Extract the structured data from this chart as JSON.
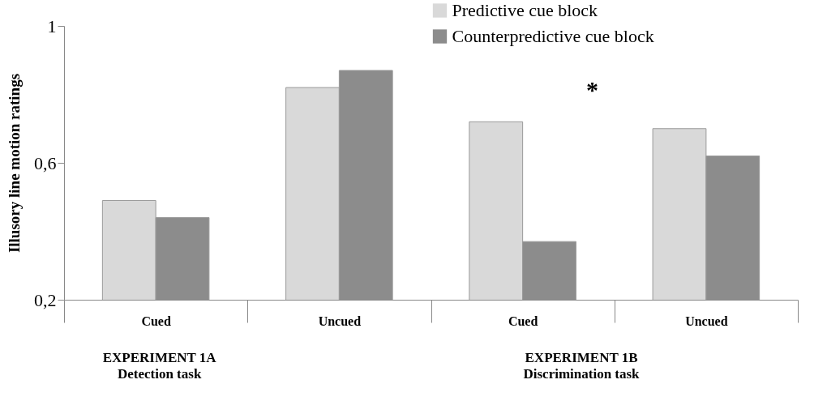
{
  "chart_data": {
    "type": "bar",
    "ylabel": "Illusory line motion ratings",
    "categories": [
      "Cued",
      "Uncued",
      null,
      "Cued",
      "Uncued"
    ],
    "series": [
      {
        "name": "Predictive cue block",
        "color": "#d9d9d9",
        "values": [
          0.49,
          0.82,
          null,
          0.72,
          0.7
        ]
      },
      {
        "name": "Counterpredictive cue block",
        "color": "#8c8c8c",
        "values": [
          0.44,
          0.87,
          null,
          0.37,
          0.62
        ]
      }
    ],
    "ylim": [
      0.2,
      1
    ],
    "yticks": [
      {
        "value": 0.2,
        "label": "0,2"
      },
      {
        "value": 0.6,
        "label": "0,6"
      },
      {
        "value": 1,
        "label": "1"
      }
    ],
    "grid": false,
    "legend": "top right",
    "annotations": [
      "*",
      "EXPERIMENT 1A\nDetection task",
      "EXPERIMENT 1B\nDiscrimination task"
    ]
  }
}
